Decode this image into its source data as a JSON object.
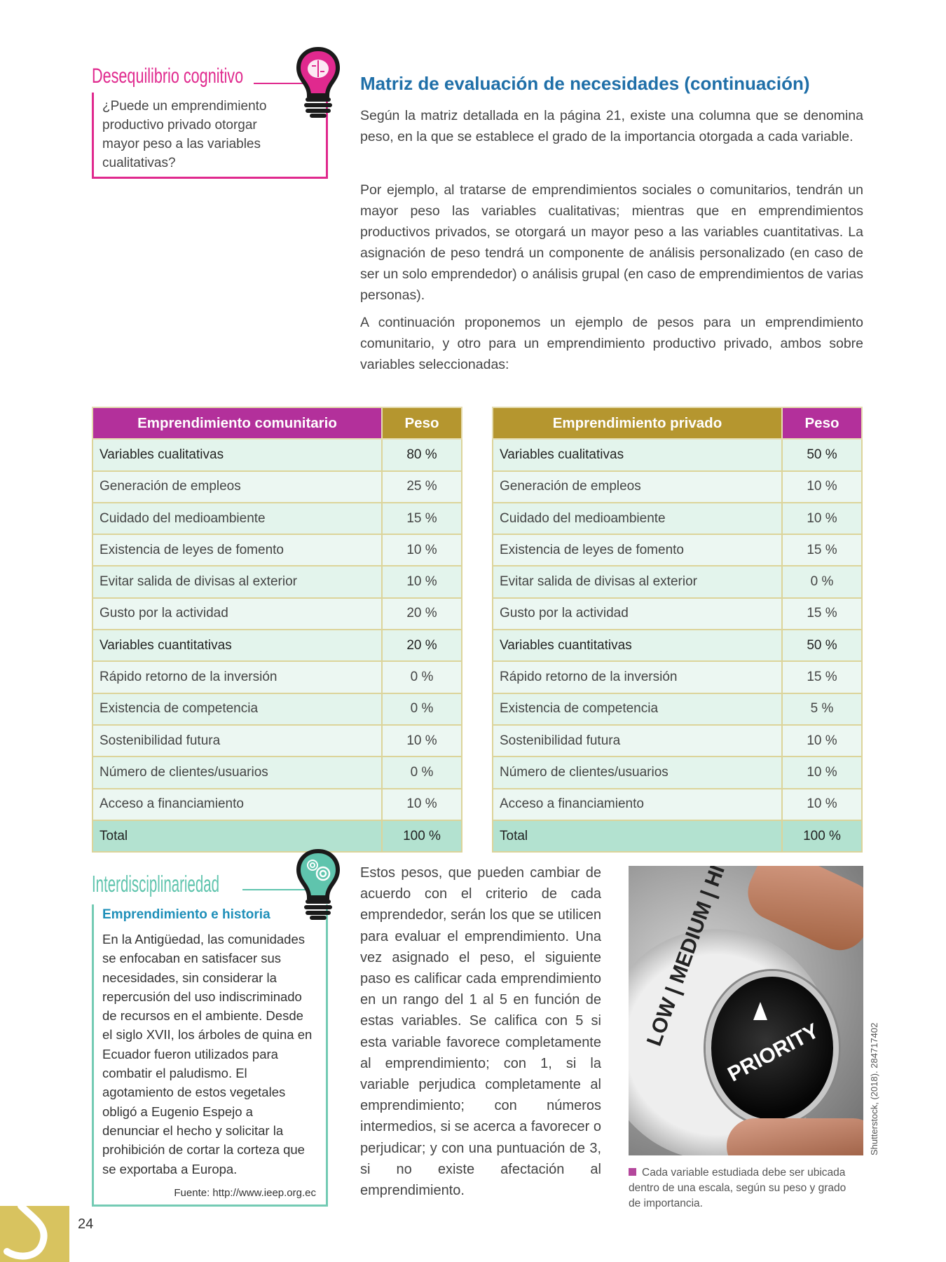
{
  "sidebar_top": {
    "title": "Desequilibrio cognitivo",
    "text": "¿Puede un emprendimiento productivo privado otorgar mayor peso a las variables cualitativas?",
    "icon": "brain-lightbulb-icon",
    "color": "#e0298e"
  },
  "main": {
    "title": "Matriz de evaluación de necesidades (continuación)",
    "paragraphs": [
      "Según la matriz detallada en la página 21, existe una columna que se denomina peso, en la que se establece el grado de la importancia otorgada a cada variable.",
      "Por ejemplo, al tratarse de emprendimientos sociales o comunitarios, tendrán un mayor peso las variables cualitativas; mientras que en emprendimientos productivos privados, se otorgará un mayor peso a las variables cuantitativas. La asignación de peso tendrá un componente de análisis personalizado (en caso de ser un solo emprendedor) o análisis grupal (en caso de emprendimientos de varias personas).",
      "A continuación proponemos un ejemplo de pesos para un emprendimiento comunitario, y otro para un emprendimiento productivo privado, ambos sobre variables seleccionadas:"
    ],
    "closing_text": "Estos pesos, que pueden cambiar de acuerdo con el criterio de cada emprendedor, serán los que se utilicen para evaluar el emprendimiento. Una vez asignado el peso, el siguiente paso es calificar cada emprendimiento en un rango del 1 al 5 en función de estas variables. Se califica con 5 si esta variable favorece completamente al emprendimiento; con 1, si la variable perjudica completamente al emprendimiento; con números intermedios, si se acerca a favorecer o perjudicar; y con una puntuación de 3, si no existe afectación al emprendimiento."
  },
  "tables": [
    {
      "header": [
        "Emprendimiento comunitario",
        "Peso"
      ],
      "header_colors": [
        "#b3309b",
        "#b5962f"
      ],
      "rows": [
        {
          "label": "Variables cualitativas",
          "value": "80 %",
          "group": true
        },
        {
          "label": "Generación de empleos",
          "value": "25 %"
        },
        {
          "label": "Cuidado del medioambiente",
          "value": "15 %"
        },
        {
          "label": "Existencia de leyes de fomento",
          "value": "10 %"
        },
        {
          "label": "Evitar salida de divisas al exterior",
          "value": "10 %"
        },
        {
          "label": "Gusto por la actividad",
          "value": "20 %"
        },
        {
          "label": "Variables cuantitativas",
          "value": "20 %",
          "group": true
        },
        {
          "label": "Rápido retorno de la inversión",
          "value": "0 %"
        },
        {
          "label": "Existencia de competencia",
          "value": "0 %"
        },
        {
          "label": "Sostenibilidad futura",
          "value": "10 %"
        },
        {
          "label": "Número de clientes/usuarios",
          "value": "0 %"
        },
        {
          "label": "Acceso a financiamiento",
          "value": "10 %"
        },
        {
          "label": "Total",
          "value": "100 %",
          "total": true
        }
      ]
    },
    {
      "header": [
        "Emprendimiento privado",
        "Peso"
      ],
      "header_colors": [
        "#b5962f",
        "#b3309b"
      ],
      "rows": [
        {
          "label": "Variables cualitativas",
          "value": "50 %",
          "group": true
        },
        {
          "label": "Generación de empleos",
          "value": "10 %"
        },
        {
          "label": "Cuidado del medioambiente",
          "value": "10 %"
        },
        {
          "label": "Existencia de leyes de fomento",
          "value": "15 %"
        },
        {
          "label": "Evitar salida de divisas al exterior",
          "value": "0 %"
        },
        {
          "label": "Gusto por la actividad",
          "value": "15 %"
        },
        {
          "label": "Variables cuantitativas",
          "value": "50 %",
          "group": true
        },
        {
          "label": "Rápido retorno de la inversión",
          "value": "15 %"
        },
        {
          "label": "Existencia de competencia",
          "value": "5 %"
        },
        {
          "label": "Sostenibilidad futura",
          "value": "10 %"
        },
        {
          "label": "Número de clientes/usuarios",
          "value": "10 %"
        },
        {
          "label": "Acceso a financiamiento",
          "value": "10 %"
        },
        {
          "label": "Total",
          "value": "100 %",
          "total": true
        }
      ]
    }
  ],
  "sidebar_bottom": {
    "title": "Interdisciplinariedad",
    "subtitle": "Emprendimiento e historia",
    "text": "En la Antigüedad, las comunidades se enfocaban en satisfacer sus necesidades, sin considerar la repercusión del uso indiscriminado de recursos en el ambiente. Desde el siglo XVII, los árboles de quina en Ecuador fueron utilizados para combatir el paludismo. El agotamiento de estos vegetales obligó a Eugenio Espejo a denunciar el hecho y solicitar la prohibición de cortar la corteza que se exportaba a Europa.",
    "source": "Fuente: http://www.ieep.org.ec",
    "icon": "gears-lightbulb-icon",
    "color": "#5fc4ad"
  },
  "figure": {
    "dial_labels": [
      "LOW",
      "MEDIUM",
      "HIGH"
    ],
    "button_text": "PRIORITY",
    "credit": "Shutterstock, (2018). 284717402",
    "caption": "Cada variable estudiada debe ser ubicada dentro de una escala, según su peso y grado de importancia."
  },
  "page_number": "24"
}
